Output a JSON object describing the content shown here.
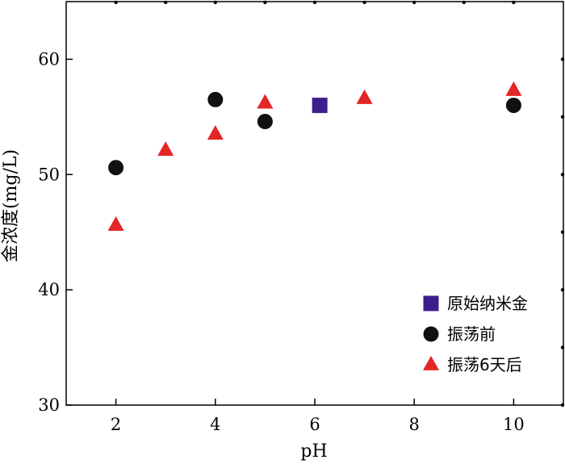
{
  "chart_data": {
    "type": "scatter",
    "xlabel": "pH",
    "ylabel": "金浓度(mg/L)",
    "xlim": [
      1,
      11
    ],
    "ylim": [
      30,
      65
    ],
    "xticks": [
      2,
      4,
      6,
      8,
      10
    ],
    "yticks": [
      30,
      40,
      50,
      60
    ],
    "grid": false,
    "legend_position": "bottom-right",
    "series": [
      {
        "name": "原始纳米金",
        "marker": "square",
        "color": "#3b1f8c",
        "points": [
          {
            "x": 6.1,
            "y": 56.0
          }
        ]
      },
      {
        "name": "振荡前",
        "marker": "circle",
        "color": "#111111",
        "points": [
          {
            "x": 2,
            "y": 50.6
          },
          {
            "x": 4,
            "y": 56.5
          },
          {
            "x": 5,
            "y": 54.6
          },
          {
            "x": 10,
            "y": 56.0
          }
        ]
      },
      {
        "name": "振荡6天后",
        "marker": "triangle",
        "color": "#e32626",
        "points": [
          {
            "x": 2,
            "y": 45.6
          },
          {
            "x": 3,
            "y": 52.1
          },
          {
            "x": 4,
            "y": 53.5
          },
          {
            "x": 5,
            "y": 56.2
          },
          {
            "x": 7,
            "y": 56.6
          },
          {
            "x": 10,
            "y": 57.3
          }
        ]
      }
    ]
  }
}
